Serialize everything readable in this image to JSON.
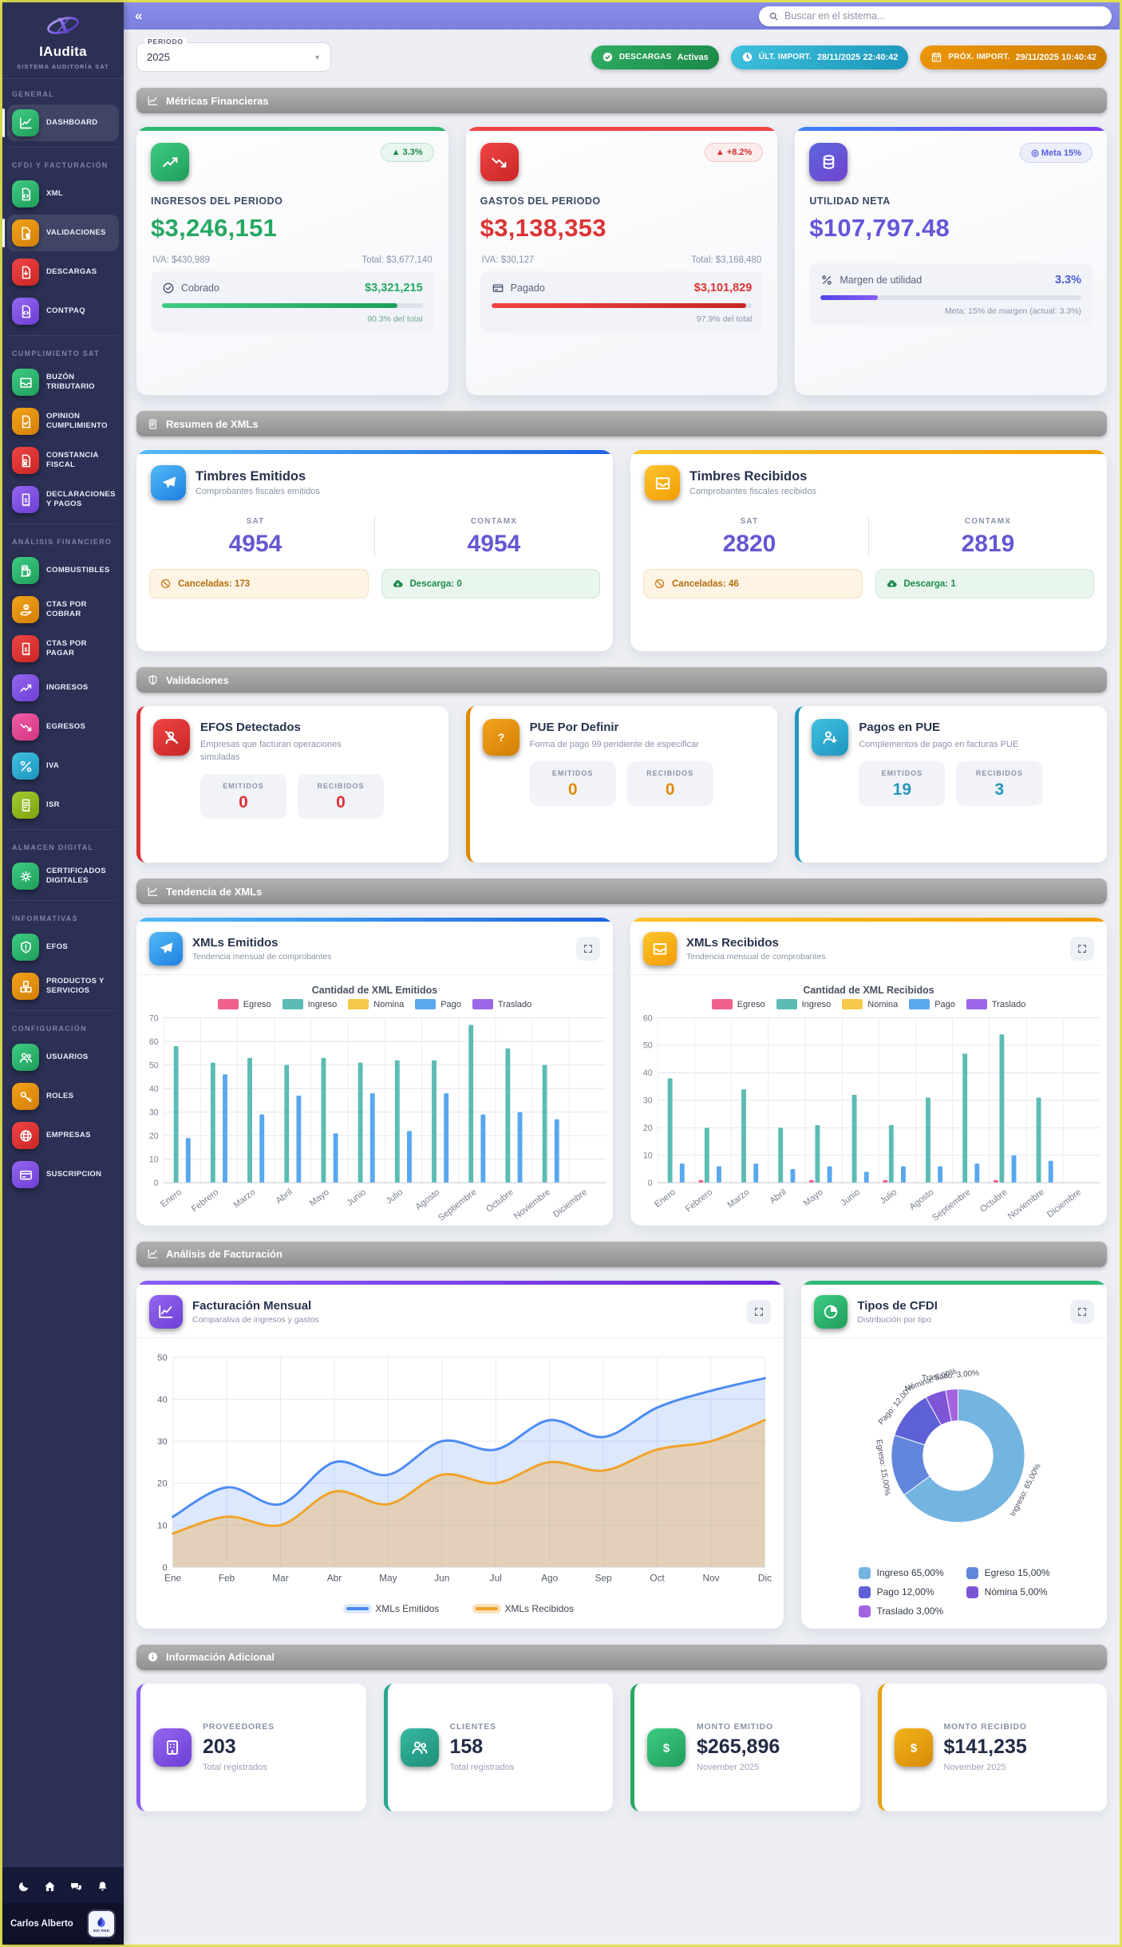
{
  "page": {
    "collapse_icon": "«",
    "search_placeholder": "Buscar en el sistema..."
  },
  "sidebar": {
    "brand": {
      "name": "IAudita",
      "subtitle": "SISTEMA AUDITORÍA SAT"
    },
    "sections": [
      {
        "label": "GENERAL",
        "items": [
          {
            "label": "DASHBOARD",
            "icon": "chart-line",
            "color": "green",
            "active": true
          }
        ]
      },
      {
        "label": "CFDI Y FACTURACIÓN",
        "items": [
          {
            "label": "XML",
            "icon": "file-xml",
            "color": "green"
          },
          {
            "label": "VALIDACIONES",
            "icon": "file-shield",
            "color": "orange",
            "active": true
          },
          {
            "label": "DESCARGAS",
            "icon": "file-download",
            "color": "red"
          },
          {
            "label": "CONTPAQ",
            "icon": "file-code",
            "color": "purple"
          }
        ]
      },
      {
        "label": "CUMPLIMIENTO SAT",
        "items": [
          {
            "label": "BUZÓN TRIBUTARIO",
            "icon": "inbox",
            "color": "green"
          },
          {
            "label": "OPINION CUMPLIMIENTO",
            "icon": "file-check",
            "color": "orange"
          },
          {
            "label": "CONSTANCIA FISCAL",
            "icon": "file-award",
            "color": "red"
          },
          {
            "label": "DECLARACIONES Y PAGOS",
            "icon": "receipt-dollar",
            "color": "purple"
          }
        ]
      },
      {
        "label": "ANÁLISIS FINANCIERO",
        "items": [
          {
            "label": "COMBUSTIBLES",
            "icon": "fuel",
            "color": "green"
          },
          {
            "label": "CTAS POR COBRAR",
            "icon": "hand-dollar",
            "color": "orange"
          },
          {
            "label": "CTAS POR PAGAR",
            "icon": "receipt-dollar",
            "color": "red"
          },
          {
            "label": "INGRESOS",
            "icon": "trend-up",
            "color": "purple"
          },
          {
            "label": "EGRESOS",
            "icon": "trend-down",
            "color": "pink"
          },
          {
            "label": "IVA",
            "icon": "percent",
            "color": "cyan"
          },
          {
            "label": "ISR",
            "icon": "receipt",
            "color": "lime"
          }
        ]
      },
      {
        "label": "ALMACEN DIGITAL",
        "items": [
          {
            "label": "CERTIFICADOS DIGITALES",
            "icon": "seal",
            "color": "green"
          }
        ]
      },
      {
        "label": "INFORMATIVAS",
        "items": [
          {
            "label": "EFOS",
            "icon": "shield-alert",
            "color": "green"
          },
          {
            "label": "PRODUCTOS Y SERVICIOS",
            "icon": "boxes",
            "color": "orange"
          }
        ]
      },
      {
        "label": "CONFIGURACIÓN",
        "items": [
          {
            "label": "USUARIOS",
            "icon": "users",
            "color": "green"
          },
          {
            "label": "ROLES",
            "icon": "key",
            "color": "orange"
          },
          {
            "label": "EMPRESAS",
            "icon": "globe",
            "color": "red"
          },
          {
            "label": "SUSCRIPCION",
            "icon": "card",
            "color": "purple"
          }
        ]
      }
    ],
    "footer": {
      "icons": [
        "moon",
        "home",
        "chat",
        "bell"
      ],
      "user": "Carlos Alberto",
      "logo_text": "SIO RED"
    }
  },
  "controls": {
    "period_label": "PERIODO",
    "period_value": "2025",
    "badges": [
      {
        "icon": "check-circle",
        "label": "DESCARGAS",
        "value": "Activas",
        "color": "green"
      },
      {
        "icon": "clock",
        "label": "ÚLT. IMPORT.",
        "value": "28/11/2025 22:40:42",
        "color": "cyan"
      },
      {
        "icon": "calendar",
        "label": "PRÓX. IMPORT.",
        "value": "29/11/2025 10:40:42",
        "color": "orange"
      }
    ]
  },
  "sections": {
    "metricas": "Métricas Financieras",
    "resumen": "Resumen de XMLs",
    "validaciones": "Validaciones",
    "tendencia": "Tendencia de XMLs",
    "analisis": "Análisis de Facturación",
    "informacion": "Información Adicional"
  },
  "metric_cards": [
    {
      "label": "INGRESOS DEL PERIODO",
      "value": "$3,246,151",
      "badge": "▲ 3.3%",
      "icon": "trend-up",
      "color": "#27a862",
      "grad": [
        "#3ecb82",
        "#1f9e5c"
      ],
      "accent": "#2eb872",
      "iva": "IVA: $430,989",
      "total": "Total: $3,677,140",
      "row_icon": "check-circle-line",
      "row_label": "Cobrado",
      "row_value": "$3,321,215",
      "progress": 90.3,
      "caption": "90.3% del total",
      "caption_color": "#6fa98c"
    },
    {
      "label": "GASTOS DEL PERIODO",
      "value": "$3,138,353",
      "badge": "▲ +8.2%",
      "icon": "trend-down",
      "color": "#dc3434",
      "grad": [
        "#ef4444",
        "#c92626"
      ],
      "accent": "#ef4444",
      "iva": "IVA: $30,127",
      "total": "Total: $3,168,480",
      "row_icon": "card",
      "row_label": "Pagado",
      "row_value": "$3,101,829",
      "progress": 97.9,
      "caption": "97.9% del total",
      "caption_color": "#8a93a8"
    },
    {
      "label": "UTILIDAD NETA",
      "value": "$107,797.48",
      "badge": "◎ Meta 15%",
      "icon": "coins",
      "color": "#6456d8",
      "grad": [
        "#5b67dd",
        "#7343cf"
      ],
      "accent": "linear-gradient(90deg,#3b82f6,#7c3aed)",
      "margin_icon": "percent",
      "margin_label": "Margen de utilidad",
      "margin_value": "3.3%",
      "progress": 22,
      "caption": "Meta: 15% de margen (actual: 3.3%)",
      "caption_color": "#8a93a8"
    }
  ],
  "timbres_cards": [
    {
      "title": "Timbres Emitidos",
      "subtitle": "Comprobantes fiscales emitidos",
      "icon": "plane",
      "accent_class": "t-blue",
      "accent": "linear-gradient(90deg,#53b9f7,#1e62e0)",
      "col1_label": "SAT",
      "col1_value": "4954",
      "col2_label": "CONTAMX",
      "col2_value": "4954",
      "canceladas": "Canceladas:",
      "canceladas_n": "173",
      "descarga": "Descarga:",
      "descarga_n": "0"
    },
    {
      "title": "Timbres Recibidos",
      "subtitle": "Comprobantes fiscales recibidos",
      "icon": "inbox",
      "accent_class": "t-yellow",
      "accent": "linear-gradient(90deg,#fcc42c,#f29d04)",
      "col1_label": "SAT",
      "col1_value": "2820",
      "col2_label": "CONTAMX",
      "col2_value": "2819",
      "canceladas": "Canceladas:",
      "canceladas_n": "46",
      "descarga": "Descarga:",
      "descarga_n": "1"
    }
  ],
  "validation_labels": {
    "emitidos": "EMITIDOS",
    "recibidos": "RECIBIDOS"
  },
  "validation_cards": [
    {
      "title": "EFOS Detectados",
      "desc": "Empresas que facturan operaciones simuladas",
      "icon": "user-slash",
      "color": "#dc3434",
      "grad": [
        "#ef4444",
        "#c92626"
      ],
      "emitidos": "0",
      "recibidos": "0"
    },
    {
      "title": "PUE Por Definir",
      "desc": "Forma de pago 99 pendiente de especificar",
      "icon": "question",
      "color": "#e08b07",
      "grad": [
        "#f2a31b",
        "#d37f06"
      ],
      "emitidos": "0",
      "recibidos": "0"
    },
    {
      "title": "Pagos en PUE",
      "desc": "Complementos de pago en facturas PUE",
      "icon": "user-down",
      "color": "#2496bd",
      "grad": [
        "#3fc0e0",
        "#1f96bf"
      ],
      "emitidos": "19",
      "recibidos": "3"
    }
  ],
  "chart_data": [
    {
      "type": "bar",
      "card_title": "XMLs Emitidos",
      "card_subtitle": "Tendencia mensual de comprobantes",
      "title": "Cantidad de XML Emitidos",
      "icon": "plane",
      "accent_class": "t-blue",
      "accent": "linear-gradient(90deg,#53b9f7,#1e62e0)",
      "grid": true,
      "legend_position": "top",
      "categories": [
        "Enero",
        "Febrero",
        "Marzo",
        "Abril",
        "Mayo",
        "Junio",
        "Julio",
        "Agosto",
        "Septiembre",
        "Octubre",
        "Noviembre",
        "Diciembre"
      ],
      "ylim": [
        0,
        70
      ],
      "ystep": 10,
      "series": [
        {
          "name": "Egreso",
          "color": "#f1608c",
          "values": [
            0,
            0,
            0,
            0,
            0,
            0,
            0,
            0,
            0,
            0,
            0,
            0
          ]
        },
        {
          "name": "Ingreso",
          "color": "#5cbcb4",
          "values": [
            58,
            51,
            53,
            50,
            53,
            51,
            52,
            52,
            67,
            57,
            50,
            0
          ]
        },
        {
          "name": "Nomina",
          "color": "#f7c84a",
          "values": [
            0,
            0,
            0,
            0,
            0,
            0,
            0,
            0,
            0,
            0,
            0,
            0
          ]
        },
        {
          "name": "Pago",
          "color": "#58a8ee",
          "values": [
            19,
            46,
            29,
            37,
            21,
            38,
            22,
            38,
            29,
            30,
            27,
            0
          ]
        },
        {
          "name": "Traslado",
          "color": "#9b67e8",
          "values": [
            0,
            0,
            0,
            0,
            0,
            0,
            0,
            0,
            0,
            0,
            0,
            0
          ]
        }
      ]
    },
    {
      "type": "bar",
      "card_title": "XMLs Recibidos",
      "card_subtitle": "Tendencia mensual de comprobantes",
      "title": "Cantidad de XML Recibidos",
      "icon": "inbox",
      "accent_class": "t-yellow",
      "accent": "linear-gradient(90deg,#fcc42c,#f29d04)",
      "grid": true,
      "legend_position": "top",
      "categories": [
        "Enero",
        "Febrero",
        "Marzo",
        "Abril",
        "Mayo",
        "Junio",
        "Julio",
        "Agosto",
        "Septiembre",
        "Octubre",
        "Noviembre",
        "Diciembre"
      ],
      "ylim": [
        0,
        60
      ],
      "ystep": 10,
      "series": [
        {
          "name": "Egreso",
          "color": "#f1608c",
          "values": [
            0,
            1,
            0,
            0,
            1,
            0,
            1,
            0,
            0,
            1,
            0,
            0
          ]
        },
        {
          "name": "Ingreso",
          "color": "#5cbcb4",
          "values": [
            38,
            20,
            34,
            20,
            21,
            32,
            21,
            31,
            47,
            54,
            31,
            0
          ]
        },
        {
          "name": "Nomina",
          "color": "#f7c84a",
          "values": [
            0,
            0,
            0,
            0,
            0,
            0,
            0,
            0,
            0,
            0,
            0,
            0
          ]
        },
        {
          "name": "Pago",
          "color": "#58a8ee",
          "values": [
            7,
            6,
            7,
            5,
            6,
            4,
            6,
            6,
            7,
            10,
            8,
            0
          ]
        },
        {
          "name": "Traslado",
          "color": "#9b67e8",
          "values": [
            0,
            0,
            0,
            0,
            0,
            0,
            0,
            0,
            0,
            0,
            0,
            0
          ]
        }
      ]
    },
    {
      "type": "area",
      "card_title": "Facturación Mensual",
      "card_subtitle": "Comparativa de ingresos y gastos",
      "icon": "chart-line",
      "accent_class": "c-purple",
      "accent": "linear-gradient(90deg,#8b5cf6,#6d28d9)",
      "grid": true,
      "legend_position": "bottom",
      "categories": [
        "Ene",
        "Feb",
        "Mar",
        "Abr",
        "May",
        "Jun",
        "Jul",
        "Ago",
        "Sep",
        "Oct",
        "Nov",
        "Dic"
      ],
      "ylim": [
        0,
        50
      ],
      "ystep": 10,
      "series": [
        {
          "name": "XMLs Emitidos",
          "color": "#4c8bf5",
          "fill": "rgba(76,139,245,0.20)",
          "values": [
            12,
            19,
            15,
            25,
            22,
            30,
            28,
            35,
            31,
            38,
            42,
            45
          ]
        },
        {
          "name": "XMLs Recibidos",
          "color": "#f2a229",
          "fill": "rgba(242,162,41,0.32)",
          "values": [
            8,
            12,
            10,
            18,
            15,
            22,
            20,
            25,
            23,
            28,
            30,
            35
          ]
        }
      ]
    },
    {
      "type": "pie",
      "card_title": "Tipos de CFDI",
      "card_subtitle": "Distribución por tipo",
      "icon": "pie",
      "accent_class": "c-green",
      "accent": "#2eb872",
      "legend_position": "bottom",
      "slices": [
        {
          "name": "Ingreso",
          "pct": 65,
          "label": "Ingreso: 65,00%",
          "legend": "Ingreso 65,00%",
          "color": "#74b4e1"
        },
        {
          "name": "Egreso",
          "pct": 15,
          "label": "Egreso: 15,00%",
          "legend": "Egreso 15,00%",
          "color": "#6186db"
        },
        {
          "name": "Pago",
          "pct": 12,
          "label": "Pago: 12,00%",
          "legend": "Pago 12,00%",
          "color": "#5e60d7"
        },
        {
          "name": "Nómina",
          "pct": 5,
          "label": "Nómina: 5,00%",
          "legend": "Nómina 5,00%",
          "color": "#7d55d7"
        },
        {
          "name": "Traslado",
          "pct": 3,
          "label": "Traslado: 3,00%",
          "legend": "Traslado 3,00%",
          "color": "#a464df"
        }
      ]
    }
  ],
  "info_cards": [
    {
      "label": "PROVEEDORES",
      "value": "203",
      "caption": "Total registrados",
      "icon": "building",
      "color": "#8b5cf6",
      "grad": [
        "#9466f0",
        "#6d3fd4"
      ]
    },
    {
      "label": "CLIENTES",
      "value": "158",
      "caption": "Total registrados",
      "icon": "users",
      "color": "#2aa791",
      "grad": [
        "#36b89e",
        "#1f8f7a"
      ]
    },
    {
      "label": "MONTO EMITIDO",
      "value": "$265,896",
      "caption": "November 2025",
      "icon": "dollar",
      "color": "#27a862",
      "grad": [
        "#3ecb82",
        "#1f9e5c"
      ]
    },
    {
      "label": "MONTO RECIBIDO",
      "value": "$141,235",
      "caption": "November 2025",
      "icon": "dollar",
      "color": "#e8a20c",
      "grad": [
        "#f2b31b",
        "#d88b06"
      ]
    }
  ]
}
